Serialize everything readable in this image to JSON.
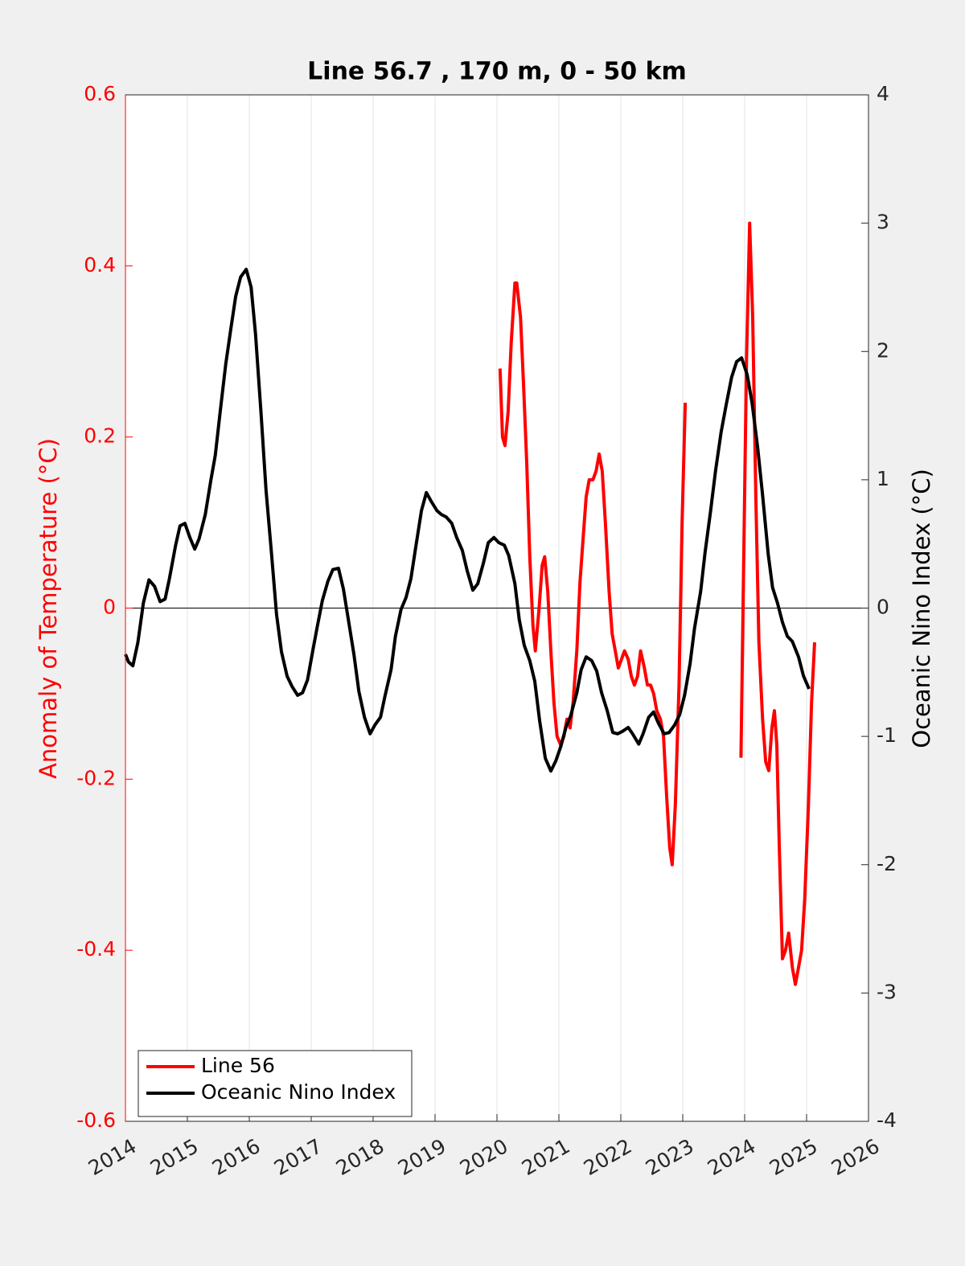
{
  "chart_data": {
    "type": "line",
    "title": "Line 56.7 , 170 m, 0 - 50 km",
    "ylabel": "Anomaly of Temperature (°C)",
    "y2label": "Oceanic Nino Index (°C)",
    "xlim": [
      2014,
      2026
    ],
    "xticks": [
      2014,
      2015,
      2016,
      2017,
      2018,
      2019,
      2020,
      2021,
      2022,
      2023,
      2024,
      2025,
      2026
    ],
    "ylim": [
      -0.6,
      0.6
    ],
    "yticks": [
      -0.6,
      -0.4,
      -0.2,
      0,
      0.2,
      0.4,
      0.6
    ],
    "y2lim": [
      -4,
      4
    ],
    "y2ticks": [
      -4,
      -3,
      -2,
      -1,
      0,
      1,
      2,
      3,
      4
    ],
    "grid": true,
    "legend": "lower-left",
    "series": [
      {
        "name": "Line 56",
        "color": "#ff0000",
        "x": [
          2020.05,
          2020.09,
          2020.13,
          2020.18,
          2020.23,
          2020.29,
          2020.32,
          2020.38,
          2020.43,
          2020.48,
          2020.53,
          2020.58,
          2020.62,
          2020.68,
          2020.73,
          2020.77,
          2020.82,
          2020.87,
          2020.92,
          2020.97,
          2021.03,
          2021.08,
          2021.13,
          2021.18,
          2021.23,
          2021.29,
          2021.34,
          2021.39,
          2021.44,
          2021.49,
          2021.55,
          2021.6,
          2021.65,
          2021.7,
          2021.75,
          2021.81,
          2021.86,
          2021.91,
          2021.96,
          2022.01,
          2022.06,
          2022.12,
          2022.17,
          2022.22,
          2022.27,
          2022.32,
          2022.38,
          2022.43,
          2022.48,
          2022.53,
          2022.58,
          2022.64,
          2022.69,
          2022.74,
          2022.79,
          2022.83,
          2022.88,
          2022.94,
          2022.99,
          2023.04,
          2023.5,
          2023.94,
          2023.97,
          2024.03,
          2024.08,
          2024.13,
          2024.18,
          2024.23,
          2024.29,
          2024.34,
          2024.39,
          2024.44,
          2024.48,
          2024.52,
          2024.56,
          2024.61,
          2024.66,
          2024.71,
          2024.77,
          2024.82,
          2024.87,
          2024.92,
          2024.97,
          2025.03,
          2025.08,
          2025.13
        ],
        "values": [
          0.28,
          0.2,
          0.19,
          0.23,
          0.31,
          0.38,
          0.38,
          0.34,
          0.26,
          0.17,
          0.06,
          -0.02,
          -0.05,
          0.0,
          0.05,
          0.06,
          0.02,
          -0.05,
          -0.11,
          -0.15,
          -0.16,
          -0.15,
          -0.13,
          -0.14,
          -0.11,
          -0.05,
          0.03,
          0.08,
          0.13,
          0.15,
          0.15,
          0.16,
          0.18,
          0.16,
          0.1,
          0.02,
          -0.03,
          -0.05,
          -0.07,
          -0.06,
          -0.05,
          -0.06,
          -0.08,
          -0.09,
          -0.08,
          -0.05,
          -0.07,
          -0.09,
          -0.09,
          -0.1,
          -0.12,
          -0.13,
          -0.15,
          -0.22,
          -0.28,
          -0.3,
          -0.23,
          -0.09,
          0.1,
          0.24,
          null,
          -0.175,
          -0.02,
          0.29,
          0.45,
          0.34,
          0.13,
          -0.04,
          -0.13,
          -0.18,
          -0.19,
          -0.14,
          -0.12,
          -0.16,
          -0.28,
          -0.41,
          -0.4,
          -0.38,
          -0.42,
          -0.44,
          -0.42,
          -0.4,
          -0.34,
          -0.23,
          -0.11,
          -0.04
        ]
      },
      {
        "name": "Oceanic Nino Index",
        "color": "#000000",
        "axis": "y2",
        "x": [
          2014.0,
          2014.05,
          2014.12,
          2014.2,
          2014.29,
          2014.38,
          2014.47,
          2014.56,
          2014.64,
          2014.71,
          2014.81,
          2014.88,
          2014.96,
          2015.04,
          2015.12,
          2015.19,
          2015.29,
          2015.38,
          2015.45,
          2015.53,
          2015.62,
          2015.7,
          2015.78,
          2015.86,
          2015.95,
          2016.03,
          2016.1,
          2016.19,
          2016.27,
          2016.36,
          2016.44,
          2016.52,
          2016.61,
          2016.69,
          2016.78,
          2016.86,
          2016.94,
          2017.03,
          2017.1,
          2017.18,
          2017.27,
          2017.35,
          2017.44,
          2017.52,
          2017.6,
          2017.69,
          2017.77,
          2017.86,
          2017.95,
          2018.03,
          2018.12,
          2018.19,
          2018.29,
          2018.36,
          2018.45,
          2018.53,
          2018.61,
          2018.69,
          2018.78,
          2018.86,
          2018.94,
          2019.03,
          2019.1,
          2019.18,
          2019.27,
          2019.35,
          2019.44,
          2019.52,
          2019.61,
          2019.69,
          2019.78,
          2019.86,
          2019.95,
          2020.03,
          2020.12,
          2020.19,
          2020.29,
          2020.36,
          2020.44,
          2020.53,
          2020.61,
          2020.69,
          2020.78,
          2020.87,
          2020.95,
          2021.03,
          2021.12,
          2021.19,
          2021.29,
          2021.36,
          2021.44,
          2021.53,
          2021.61,
          2021.69,
          2021.78,
          2021.87,
          2021.95,
          2022.03,
          2022.12,
          2022.19,
          2022.29,
          2022.36,
          2022.45,
          2022.53,
          2022.61,
          2022.7,
          2022.78,
          2022.87,
          2022.95,
          2023.03,
          2023.12,
          2023.19,
          2023.29,
          2023.36,
          2023.45,
          2023.53,
          2023.62,
          2023.7,
          2023.79,
          2023.87,
          2023.95,
          2024.04,
          2024.12,
          2024.21,
          2024.29,
          2024.38,
          2024.45,
          2024.53,
          2024.61,
          2024.69,
          2024.77,
          2024.87,
          2024.95,
          2025.04
        ],
        "values": [
          -0.36,
          -0.42,
          -0.45,
          -0.27,
          0.04,
          0.22,
          0.17,
          0.05,
          0.07,
          0.23,
          0.49,
          0.64,
          0.66,
          0.55,
          0.46,
          0.54,
          0.73,
          1.0,
          1.19,
          1.53,
          1.9,
          2.17,
          2.43,
          2.58,
          2.64,
          2.5,
          2.14,
          1.52,
          0.92,
          0.42,
          -0.05,
          -0.34,
          -0.53,
          -0.61,
          -0.68,
          -0.66,
          -0.56,
          -0.32,
          -0.14,
          0.06,
          0.21,
          0.3,
          0.31,
          0.15,
          -0.09,
          -0.36,
          -0.65,
          -0.85,
          -0.98,
          -0.91,
          -0.85,
          -0.69,
          -0.48,
          -0.22,
          -0.01,
          0.08,
          0.23,
          0.48,
          0.76,
          0.9,
          0.83,
          0.76,
          0.73,
          0.71,
          0.66,
          0.55,
          0.45,
          0.29,
          0.14,
          0.19,
          0.35,
          0.51,
          0.55,
          0.51,
          0.49,
          0.41,
          0.19,
          -0.09,
          -0.29,
          -0.41,
          -0.57,
          -0.88,
          -1.17,
          -1.27,
          -1.19,
          -1.08,
          -0.92,
          -0.84,
          -0.66,
          -0.48,
          -0.38,
          -0.41,
          -0.49,
          -0.66,
          -0.8,
          -0.97,
          -0.98,
          -0.96,
          -0.93,
          -0.98,
          -1.06,
          -0.98,
          -0.85,
          -0.81,
          -0.9,
          -0.98,
          -0.97,
          -0.91,
          -0.83,
          -0.68,
          -0.43,
          -0.16,
          0.13,
          0.43,
          0.76,
          1.07,
          1.37,
          1.58,
          1.8,
          1.92,
          1.95,
          1.82,
          1.6,
          1.25,
          0.88,
          0.42,
          0.16,
          0.04,
          -0.11,
          -0.22,
          -0.26,
          -0.38,
          -0.53,
          -0.63
        ]
      }
    ]
  }
}
